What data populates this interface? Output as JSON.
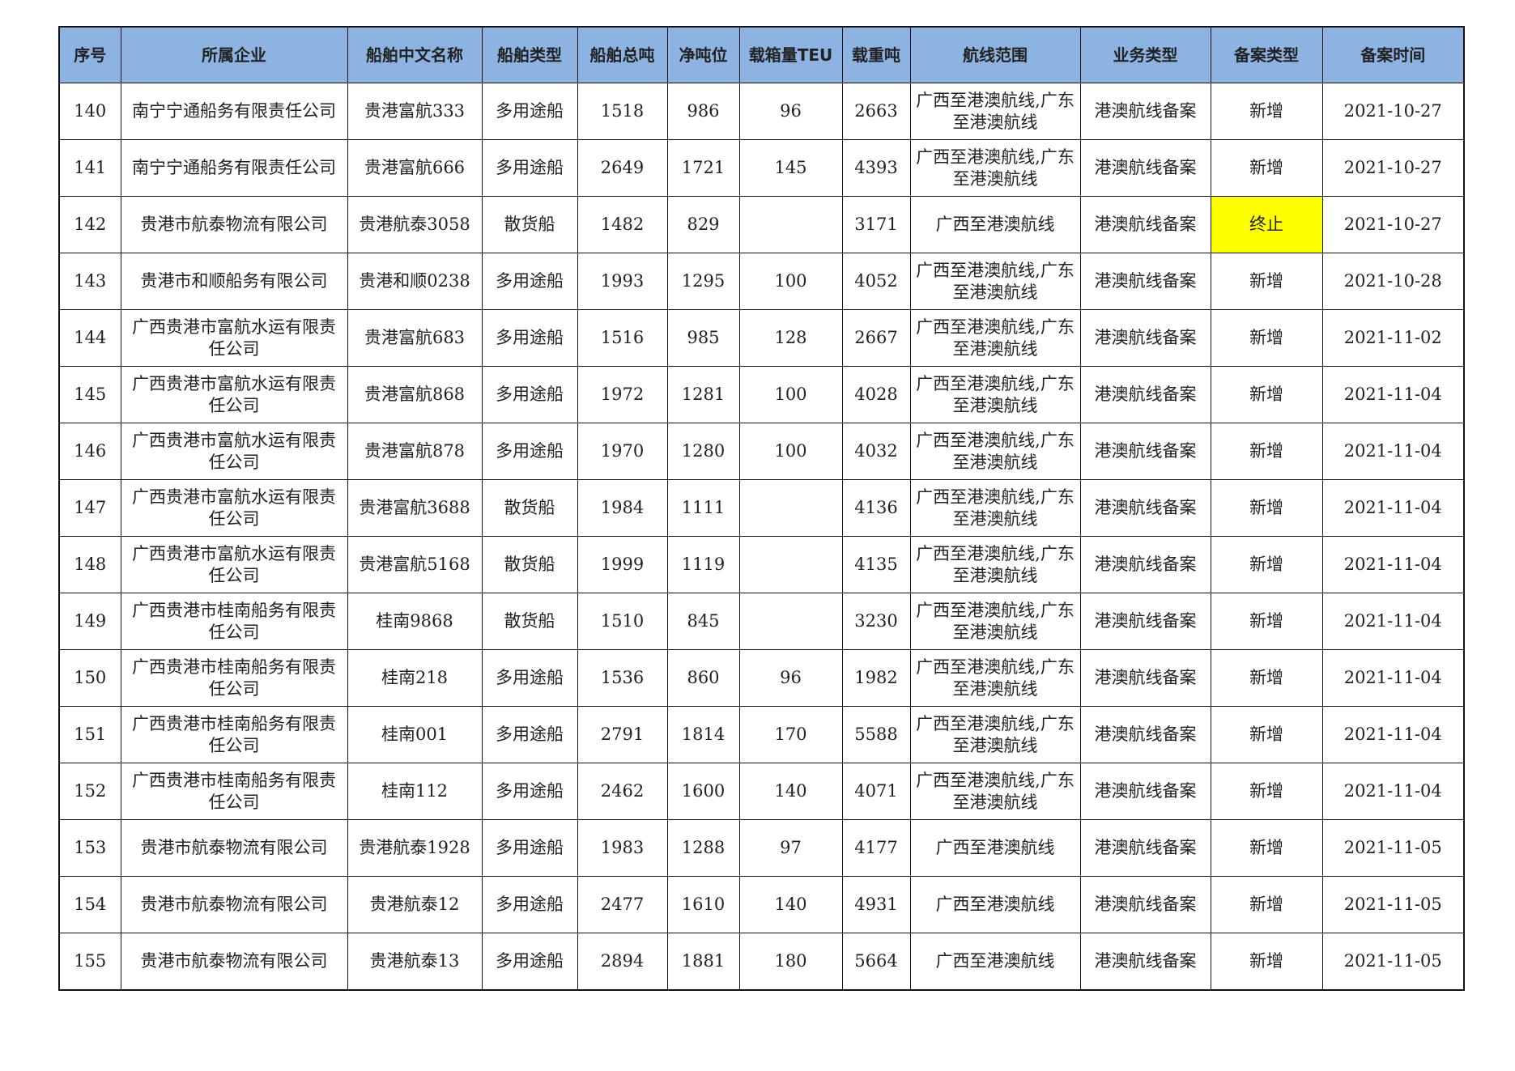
{
  "headers": [
    "序号",
    "所属企业",
    "船舶中文名称",
    "船舶类型",
    "船舶总吨",
    "净吨位",
    "载箱量TEU",
    "载重吨",
    "航线范围",
    "业务类型",
    "备案类型",
    "备案时间"
  ],
  "highlight_color": "#ffff00",
  "header_color": "#8db3e2",
  "rows": [
    [
      "140",
      "南宁宁通船务有限责任公司",
      "贵港富航333",
      "多用途船",
      "1518",
      "986",
      "96",
      "2663",
      "广西至港澳航线,广东至港澳航线",
      "港澳航线备案",
      "新增",
      "2021-10-27"
    ],
    [
      "141",
      "南宁宁通船务有限责任公司",
      "贵港富航666",
      "多用途船",
      "2649",
      "1721",
      "145",
      "4393",
      "广西至港澳航线,广东至港澳航线",
      "港澳航线备案",
      "新增",
      "2021-10-27"
    ],
    [
      "142",
      "贵港市航泰物流有限公司",
      "贵港航泰3058",
      "散货船",
      "1482",
      "829",
      "",
      "3171",
      "广西至港澳航线",
      "港澳航线备案",
      "终止",
      "2021-10-27"
    ],
    [
      "143",
      "贵港市和顺船务有限公司",
      "贵港和顺0238",
      "多用途船",
      "1993",
      "1295",
      "100",
      "4052",
      "广西至港澳航线,广东至港澳航线",
      "港澳航线备案",
      "新增",
      "2021-10-28"
    ],
    [
      "144",
      "广西贵港市富航水运有限责任公司",
      "贵港富航683",
      "多用途船",
      "1516",
      "985",
      "128",
      "2667",
      "广西至港澳航线,广东至港澳航线",
      "港澳航线备案",
      "新增",
      "2021-11-02"
    ],
    [
      "145",
      "广西贵港市富航水运有限责任公司",
      "贵港富航868",
      "多用途船",
      "1972",
      "1281",
      "100",
      "4028",
      "广西至港澳航线,广东至港澳航线",
      "港澳航线备案",
      "新增",
      "2021-11-04"
    ],
    [
      "146",
      "广西贵港市富航水运有限责任公司",
      "贵港富航878",
      "多用途船",
      "1970",
      "1280",
      "100",
      "4032",
      "广西至港澳航线,广东至港澳航线",
      "港澳航线备案",
      "新增",
      "2021-11-04"
    ],
    [
      "147",
      "广西贵港市富航水运有限责任公司",
      "贵港富航3688",
      "散货船",
      "1984",
      "1111",
      "",
      "4136",
      "广西至港澳航线,广东至港澳航线",
      "港澳航线备案",
      "新增",
      "2021-11-04"
    ],
    [
      "148",
      "广西贵港市富航水运有限责任公司",
      "贵港富航5168",
      "散货船",
      "1999",
      "1119",
      "",
      "4135",
      "广西至港澳航线,广东至港澳航线",
      "港澳航线备案",
      "新增",
      "2021-11-04"
    ],
    [
      "149",
      "广西贵港市桂南船务有限责任公司",
      "桂南9868",
      "散货船",
      "1510",
      "845",
      "",
      "3230",
      "广西至港澳航线,广东至港澳航线",
      "港澳航线备案",
      "新增",
      "2021-11-04"
    ],
    [
      "150",
      "广西贵港市桂南船务有限责任公司",
      "桂南218",
      "多用途船",
      "1536",
      "860",
      "96",
      "1982",
      "广西至港澳航线,广东至港澳航线",
      "港澳航线备案",
      "新增",
      "2021-11-04"
    ],
    [
      "151",
      "广西贵港市桂南船务有限责任公司",
      "桂南001",
      "多用途船",
      "2791",
      "1814",
      "170",
      "5588",
      "广西至港澳航线,广东至港澳航线",
      "港澳航线备案",
      "新增",
      "2021-11-04"
    ],
    [
      "152",
      "广西贵港市桂南船务有限责任公司",
      "桂南112",
      "多用途船",
      "2462",
      "1600",
      "140",
      "4071",
      "广西至港澳航线,广东至港澳航线",
      "港澳航线备案",
      "新增",
      "2021-11-04"
    ],
    [
      "153",
      "贵港市航泰物流有限公司",
      "贵港航泰1928",
      "多用途船",
      "1983",
      "1288",
      "97",
      "4177",
      "广西至港澳航线",
      "港澳航线备案",
      "新增",
      "2021-11-05"
    ],
    [
      "154",
      "贵港市航泰物流有限公司",
      "贵港航泰12",
      "多用途船",
      "2477",
      "1610",
      "140",
      "4931",
      "广西至港澳航线",
      "港澳航线备案",
      "新增",
      "2021-11-05"
    ],
    [
      "155",
      "贵港市航泰物流有限公司",
      "贵港航泰13",
      "多用途船",
      "2894",
      "1881",
      "180",
      "5664",
      "广西至港澳航线",
      "港澳航线备案",
      "新增",
      "2021-11-05"
    ]
  ]
}
